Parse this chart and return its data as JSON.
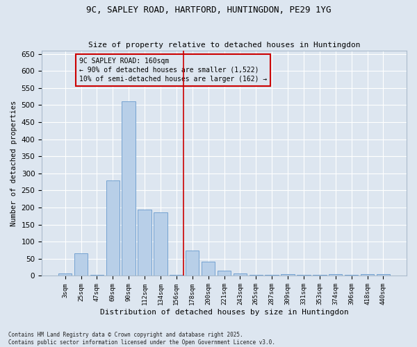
{
  "title": "9C, SAPLEY ROAD, HARTFORD, HUNTINGDON, PE29 1YG",
  "subtitle": "Size of property relative to detached houses in Huntingdon",
  "xlabel": "Distribution of detached houses by size in Huntingdon",
  "ylabel": "Number of detached properties",
  "footer_line1": "Contains HM Land Registry data © Crown copyright and database right 2025.",
  "footer_line2": "Contains public sector information licensed under the Open Government Licence v3.0.",
  "annotation_title": "9C SAPLEY ROAD: 160sqm",
  "annotation_line1": "← 90% of detached houses are smaller (1,522)",
  "annotation_line2": "10% of semi-detached houses are larger (162) →",
  "categories": [
    "3sqm",
    "25sqm",
    "47sqm",
    "69sqm",
    "90sqm",
    "112sqm",
    "134sqm",
    "156sqm",
    "178sqm",
    "200sqm",
    "221sqm",
    "243sqm",
    "265sqm",
    "287sqm",
    "309sqm",
    "331sqm",
    "353sqm",
    "374sqm",
    "396sqm",
    "418sqm",
    "440sqm"
  ],
  "bar_values": [
    8,
    65,
    3,
    280,
    510,
    195,
    185,
    3,
    75,
    42,
    15,
    8,
    3,
    3,
    5,
    3,
    3,
    5,
    3,
    5,
    5
  ],
  "bar_color": "#b8cfe8",
  "bar_edge_color": "#6699cc",
  "vline_color": "#cc0000",
  "vline_idx": 7,
  "annotation_box_color": "#cc0000",
  "background_color": "#dde6f0",
  "ylim": [
    0,
    660
  ],
  "yticks": [
    0,
    50,
    100,
    150,
    200,
    250,
    300,
    350,
    400,
    450,
    500,
    550,
    600,
    650
  ]
}
